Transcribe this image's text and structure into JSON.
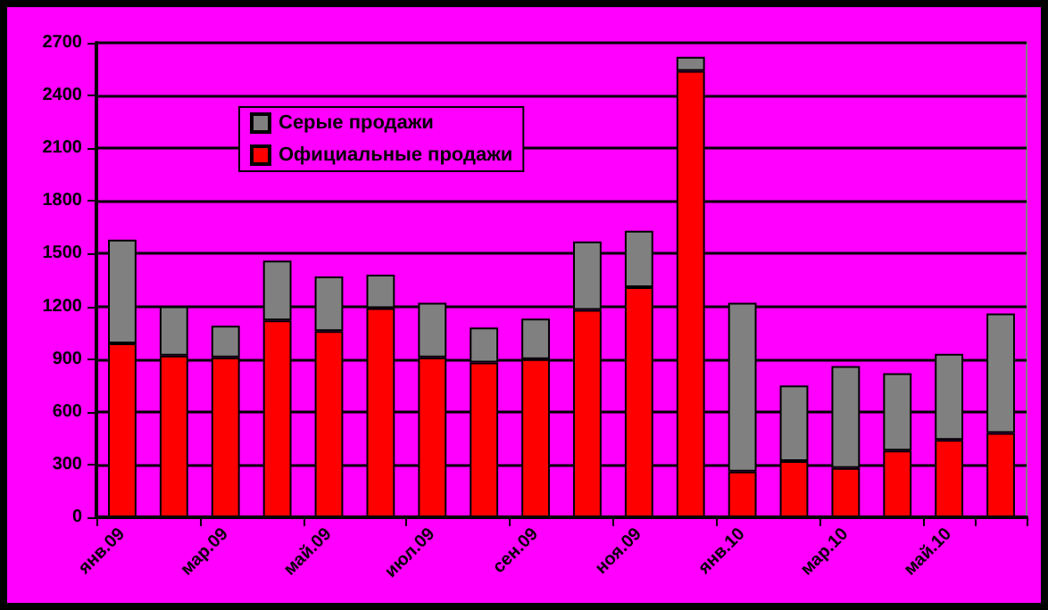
{
  "chart_data": {
    "type": "bar",
    "stacked": true,
    "categories": [
      "янв.09",
      null,
      "мар.09",
      null,
      "май.09",
      null,
      "июл.09",
      null,
      "сен.09",
      null,
      "ноя.09",
      null,
      "янв.10",
      null,
      "мар.10",
      null,
      "май.10",
      null
    ],
    "series": [
      {
        "name": "Официальные продажи",
        "color": "#ff0000",
        "values": [
          990,
          920,
          910,
          1120,
          1060,
          1190,
          910,
          880,
          900,
          1180,
          1310,
          2540,
          260,
          320,
          280,
          380,
          440,
          480
        ]
      },
      {
        "name": "Серые продажи",
        "color": "#808080",
        "values": [
          590,
          280,
          180,
          340,
          310,
          190,
          310,
          200,
          230,
          390,
          320,
          80,
          960,
          430,
          580,
          440,
          490,
          680
        ]
      }
    ],
    "ylim": [
      0,
      2700
    ],
    "yticks": [
      0,
      300,
      600,
      900,
      1200,
      1500,
      1800,
      2100,
      2400,
      2700
    ],
    "grid": "y",
    "legend": "top left"
  }
}
